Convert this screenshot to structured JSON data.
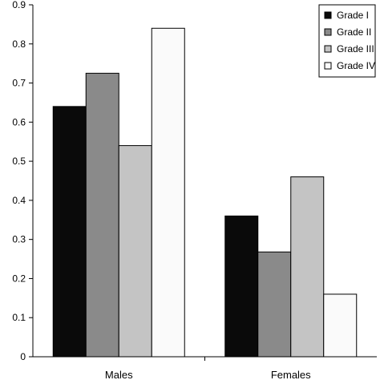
{
  "chart_data": {
    "type": "bar",
    "categories": [
      "Males",
      "Females"
    ],
    "series": [
      {
        "name": "Grade I",
        "values": [
          0.64,
          0.36
        ],
        "color": "#0a0a0a"
      },
      {
        "name": "Grade II",
        "values": [
          0.725,
          0.268
        ],
        "color": "#8a8a8a"
      },
      {
        "name": "Grade III",
        "values": [
          0.54,
          0.46
        ],
        "color": "#c4c4c4"
      },
      {
        "name": "Grade IV",
        "values": [
          0.84,
          0.16
        ],
        "color": "#fafafa"
      }
    ],
    "yticks": [
      "0",
      "0.1",
      "0.2",
      "0.3",
      "0.4",
      "0.5",
      "0.6",
      "0.7",
      "0.8",
      "0.9"
    ],
    "ylim": [
      0,
      0.9
    ],
    "grid": false,
    "legend": "top-right",
    "title": "",
    "xlabel": "",
    "ylabel": ""
  }
}
